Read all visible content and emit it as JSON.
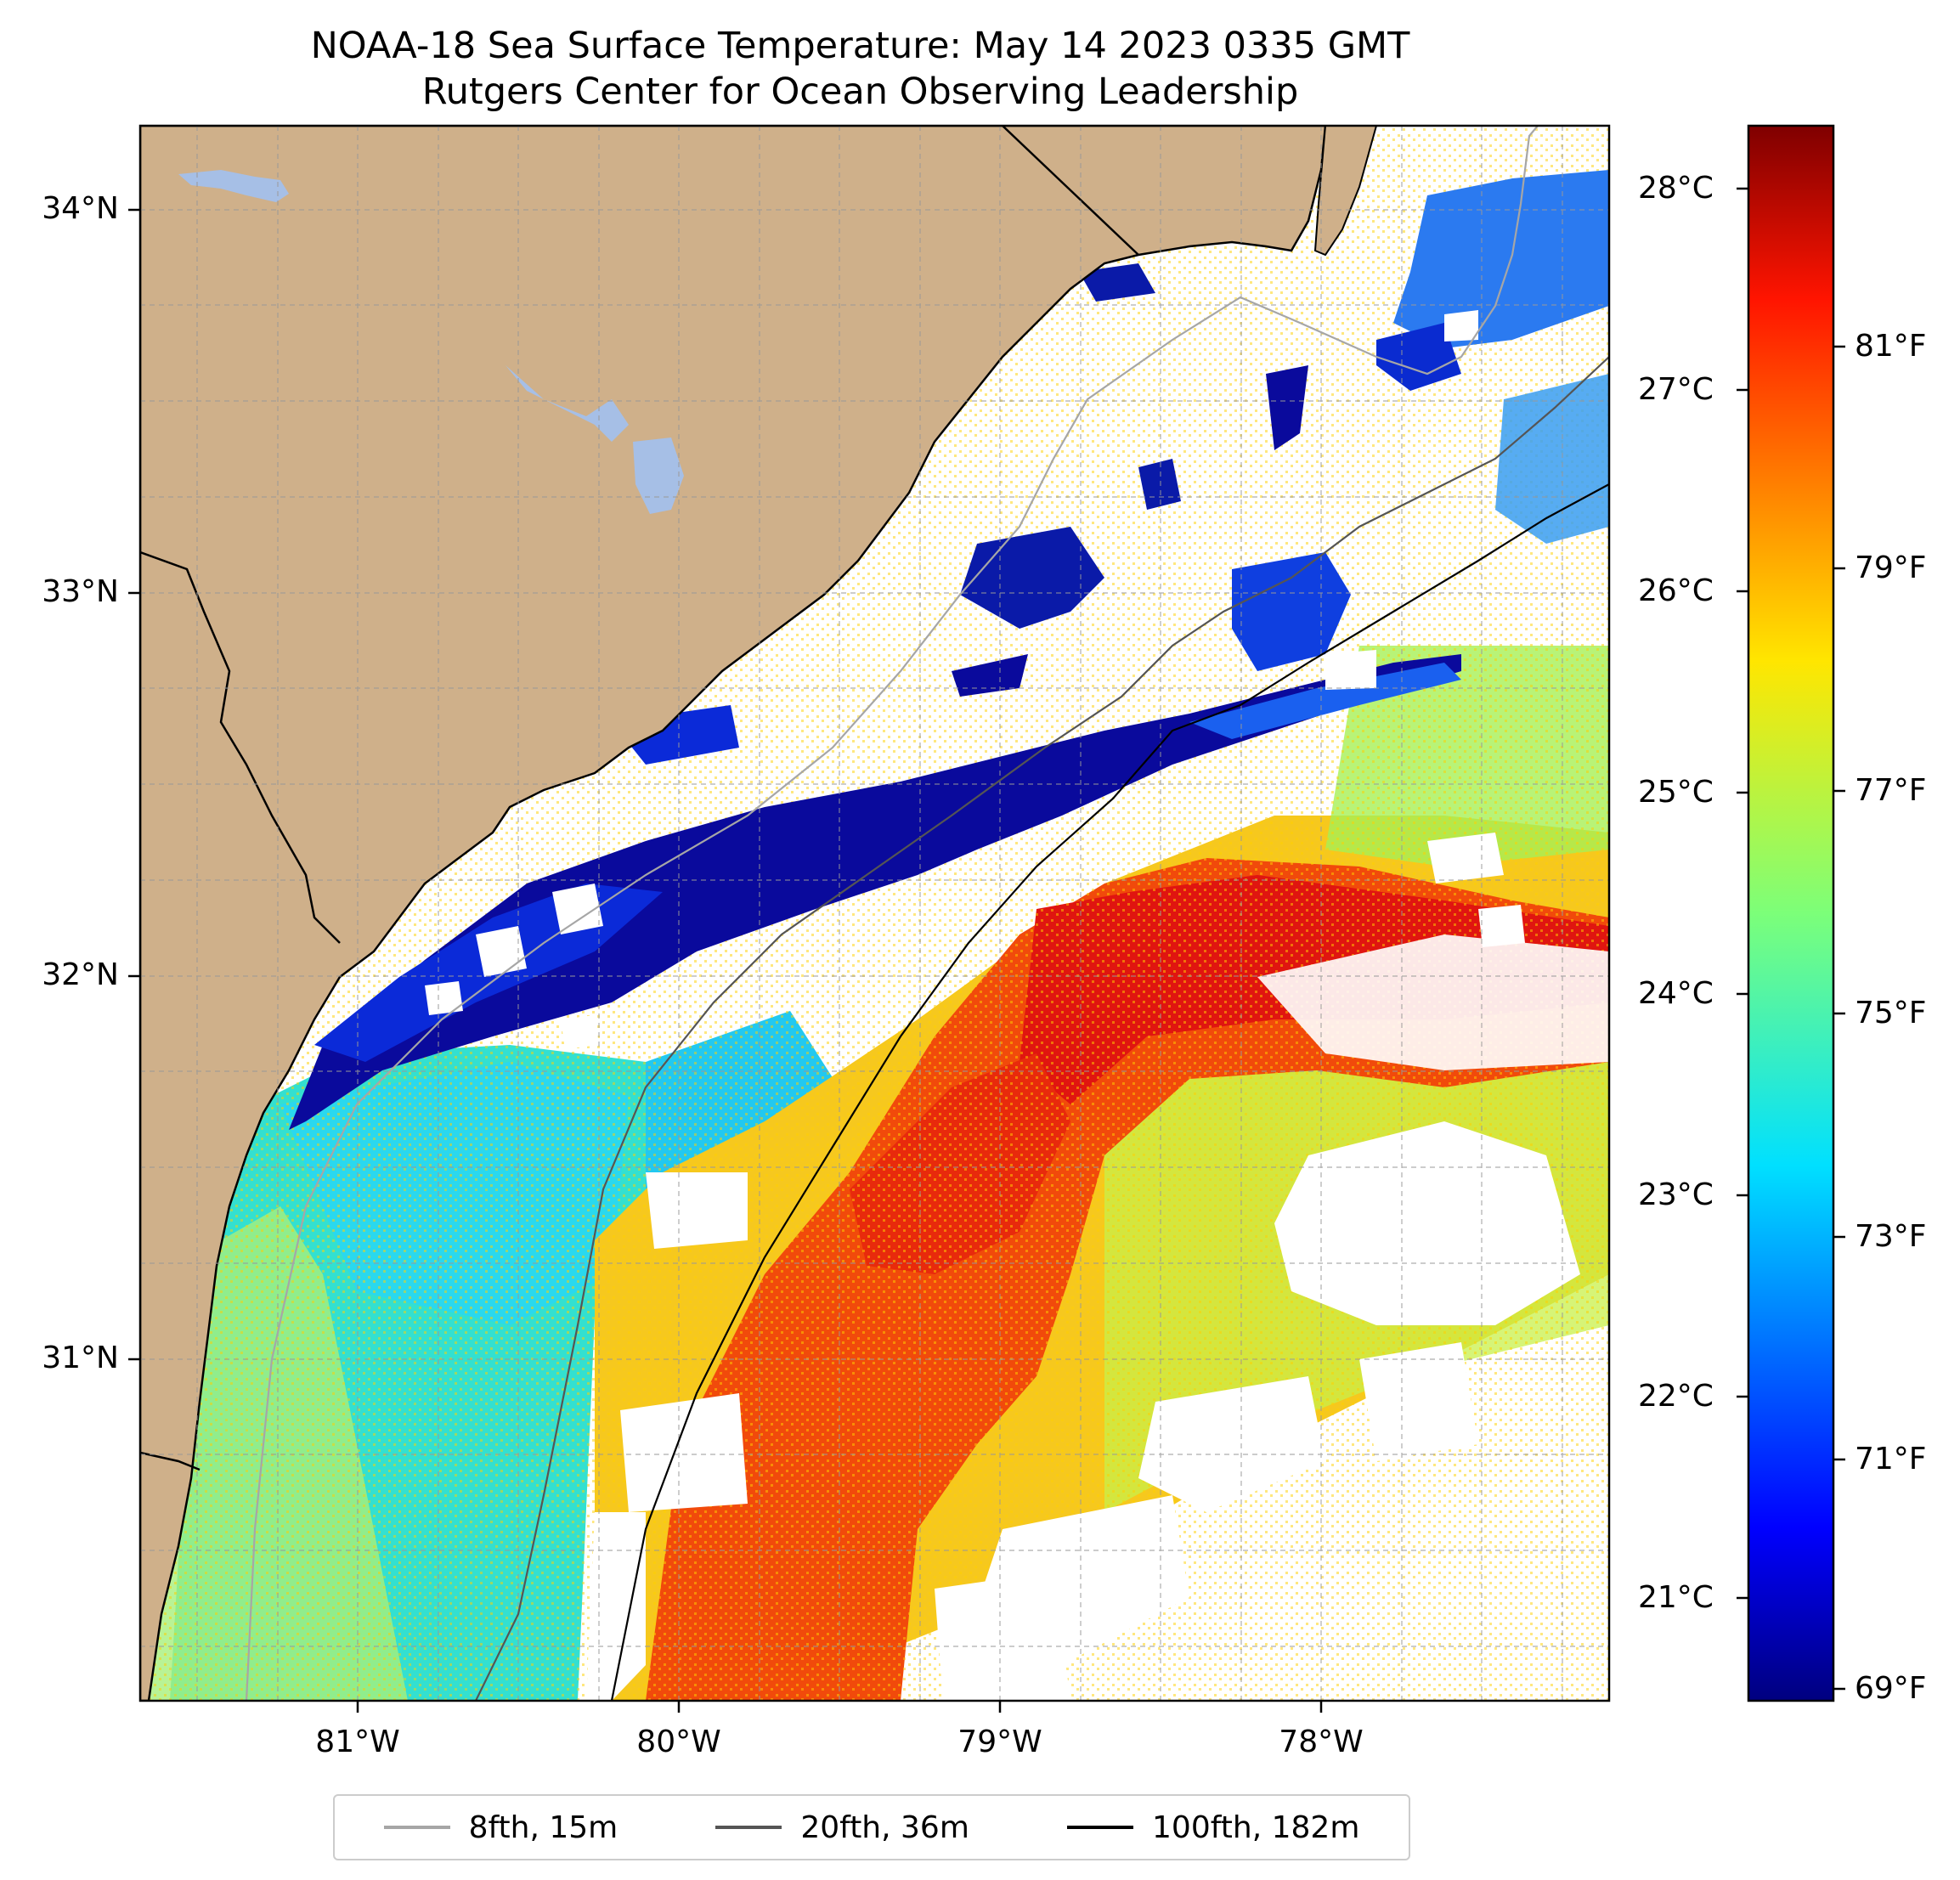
{
  "title": {
    "line1": "NOAA-18 Sea Surface Temperature: May 14 2023 0335 GMT",
    "line2": "Rutgers Center for Ocean Observing Leadership"
  },
  "map": {
    "lat_labels": [
      "34°N",
      "33°N",
      "32°N",
      "31°N"
    ],
    "lon_labels": [
      "81°W",
      "80°W",
      "79°W",
      "78°W"
    ],
    "colors": {
      "land": "#cfb08a",
      "lake": "#a6bfe6",
      "coastline": "#000000"
    }
  },
  "colorbar": {
    "celsius_labels": [
      "28°C",
      "27°C",
      "26°C",
      "25°C",
      "24°C",
      "23°C",
      "22°C",
      "21°C"
    ],
    "fahrenheit_labels": [
      "81°F",
      "79°F",
      "77°F",
      "75°F",
      "73°F",
      "71°F",
      "69°F"
    ],
    "colormap": "jet"
  },
  "legend": {
    "items": [
      {
        "label": "8fth, 15m",
        "color": "#a6a6a6"
      },
      {
        "label": "20fth, 36m",
        "color": "#555555"
      },
      {
        "label": "100fth, 182m",
        "color": "#000000"
      }
    ]
  }
}
